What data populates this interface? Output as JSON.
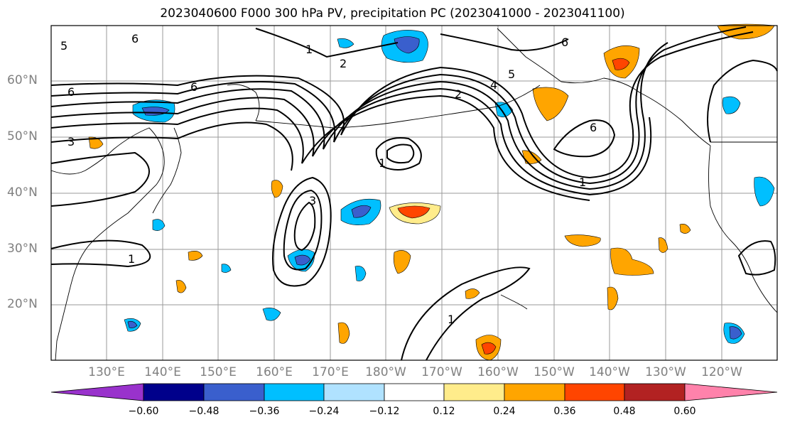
{
  "title": "2023040600 F000 300 hPa PV, precipitation PC (2023041000 - 2023041100)",
  "map": {
    "lat_labels": [
      "60°N",
      "50°N",
      "40°N",
      "30°N",
      "20°N"
    ],
    "lon_labels": [
      "130°E",
      "140°E",
      "150°E",
      "160°E",
      "170°E",
      "180°W",
      "170°W",
      "160°W",
      "150°W",
      "140°W",
      "130°W",
      "120°W"
    ],
    "contour_labels": [
      "1",
      "2",
      "3",
      "4",
      "5",
      "6"
    ],
    "colorbar": {
      "ticks": [
        "−0.60",
        "−0.48",
        "−0.36",
        "−0.24",
        "−0.12",
        "0.12",
        "0.24",
        "0.36",
        "0.48",
        "0.60"
      ],
      "colors": [
        "#9932CC",
        "#00008B",
        "#3A5FCD",
        "#00BFFF",
        "#B0E2FF",
        "#FFFFFF",
        "#FFEC8B",
        "#FFA500",
        "#FF4500",
        "#B22222",
        "#FF82AB"
      ]
    }
  }
}
